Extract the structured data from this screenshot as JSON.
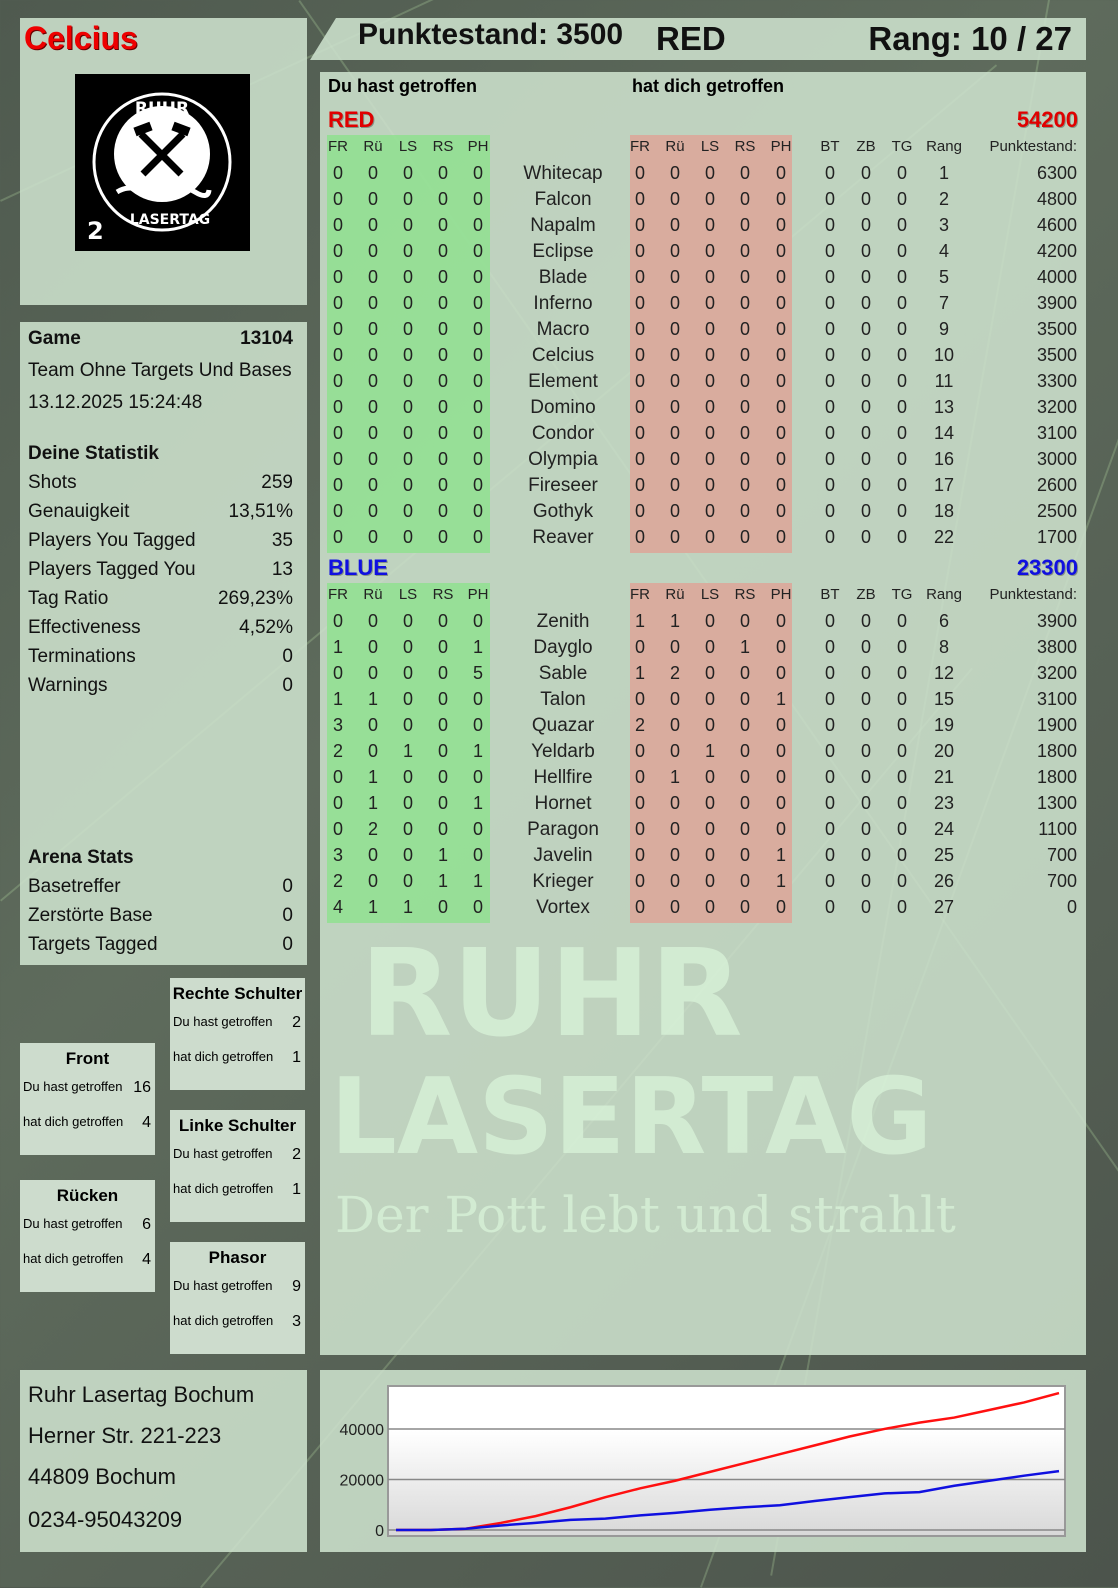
{
  "player": {
    "name": "Celcius",
    "score_label": "Punktestand: 3500",
    "team": "RED",
    "rank_label": "Rang: 10 / 27"
  },
  "logo": {
    "text_top": "RUHR",
    "text_bottom": "LASERTAG",
    "number": "2"
  },
  "watermark": {
    "line1": "RUHR",
    "line2": "LASERTAG",
    "line3": "Der Pott lebt und strahlt"
  },
  "game": {
    "label": "Game",
    "id": "13104",
    "mode": "Team Ohne Targets Und Bases",
    "datetime": "13.12.2025 15:24:48"
  },
  "stats": {
    "title": "Deine Statistik",
    "items": [
      {
        "label": "Shots",
        "value": "259"
      },
      {
        "label": "Genauigkeit",
        "value": "13,51%"
      },
      {
        "label": "Players You Tagged",
        "value": "35"
      },
      {
        "label": "Players Tagged You",
        "value": "13"
      },
      {
        "label": "Tag Ratio",
        "value": "269,23%"
      },
      {
        "label": "Effectiveness",
        "value": "4,52%"
      },
      {
        "label": "Terminations",
        "value": "0"
      },
      {
        "label": "Warnings",
        "value": "0"
      }
    ]
  },
  "arena": {
    "title": "Arena Stats",
    "items": [
      {
        "label": "Basetreffer",
        "value": "0"
      },
      {
        "label": "Zerstörte Base",
        "value": "0"
      },
      {
        "label": "Targets Tagged",
        "value": "0"
      }
    ]
  },
  "body_parts": [
    {
      "title": "Rechte Schulter",
      "you_label": "Du hast getroffen",
      "you": "2",
      "them_label": "hat dich getroffen",
      "them": "1"
    },
    {
      "title": "Front",
      "you_label": "Du hast getroffen",
      "you": "16",
      "them_label": "hat dich getroffen",
      "them": "4"
    },
    {
      "title": "Linke Schulter",
      "you_label": "Du hast getroffen",
      "you": "2",
      "them_label": "hat dich getroffen",
      "them": "1"
    },
    {
      "title": "Rücken",
      "you_label": "Du hast getroffen",
      "you": "6",
      "them_label": "hat dich getroffen",
      "them": "4"
    },
    {
      "title": "Phasor",
      "you_label": "Du hast getroffen",
      "you": "9",
      "them_label": "hat dich getroffen",
      "them": "3"
    }
  ],
  "address": [
    "Ruhr Lasertag Bochum",
    "Herner Str. 221-223",
    "44809 Bochum",
    "0234-95043209"
  ],
  "table": {
    "you_hit_label": "Du hast getroffen",
    "hit_you_label": "hat dich getroffen",
    "hit_cols": [
      "FR",
      "Rü",
      "LS",
      "RS",
      "PH"
    ],
    "extra_cols": [
      "BT",
      "ZB",
      "TG",
      "Rang",
      "Punktestand:"
    ],
    "teams": [
      {
        "name": "RED",
        "total": "54200",
        "color": "#e00000",
        "players": [
          {
            "name": "Whitecap",
            "you": [
              0,
              0,
              0,
              0,
              0
            ],
            "them": [
              0,
              0,
              0,
              0,
              0
            ],
            "extra": [
              0,
              0,
              0,
              1
            ],
            "score": "6300"
          },
          {
            "name": "Falcon",
            "you": [
              0,
              0,
              0,
              0,
              0
            ],
            "them": [
              0,
              0,
              0,
              0,
              0
            ],
            "extra": [
              0,
              0,
              0,
              2
            ],
            "score": "4800"
          },
          {
            "name": "Napalm",
            "you": [
              0,
              0,
              0,
              0,
              0
            ],
            "them": [
              0,
              0,
              0,
              0,
              0
            ],
            "extra": [
              0,
              0,
              0,
              3
            ],
            "score": "4600"
          },
          {
            "name": "Eclipse",
            "you": [
              0,
              0,
              0,
              0,
              0
            ],
            "them": [
              0,
              0,
              0,
              0,
              0
            ],
            "extra": [
              0,
              0,
              0,
              4
            ],
            "score": "4200"
          },
          {
            "name": "Blade",
            "you": [
              0,
              0,
              0,
              0,
              0
            ],
            "them": [
              0,
              0,
              0,
              0,
              0
            ],
            "extra": [
              0,
              0,
              0,
              5
            ],
            "score": "4000"
          },
          {
            "name": "Inferno",
            "you": [
              0,
              0,
              0,
              0,
              0
            ],
            "them": [
              0,
              0,
              0,
              0,
              0
            ],
            "extra": [
              0,
              0,
              0,
              7
            ],
            "score": "3900"
          },
          {
            "name": "Macro",
            "you": [
              0,
              0,
              0,
              0,
              0
            ],
            "them": [
              0,
              0,
              0,
              0,
              0
            ],
            "extra": [
              0,
              0,
              0,
              9
            ],
            "score": "3500"
          },
          {
            "name": "Celcius",
            "you": [
              0,
              0,
              0,
              0,
              0
            ],
            "them": [
              0,
              0,
              0,
              0,
              0
            ],
            "extra": [
              0,
              0,
              0,
              10
            ],
            "score": "3500"
          },
          {
            "name": "Element",
            "you": [
              0,
              0,
              0,
              0,
              0
            ],
            "them": [
              0,
              0,
              0,
              0,
              0
            ],
            "extra": [
              0,
              0,
              0,
              11
            ],
            "score": "3300"
          },
          {
            "name": "Domino",
            "you": [
              0,
              0,
              0,
              0,
              0
            ],
            "them": [
              0,
              0,
              0,
              0,
              0
            ],
            "extra": [
              0,
              0,
              0,
              13
            ],
            "score": "3200"
          },
          {
            "name": "Condor",
            "you": [
              0,
              0,
              0,
              0,
              0
            ],
            "them": [
              0,
              0,
              0,
              0,
              0
            ],
            "extra": [
              0,
              0,
              0,
              14
            ],
            "score": "3100"
          },
          {
            "name": "Olympia",
            "you": [
              0,
              0,
              0,
              0,
              0
            ],
            "them": [
              0,
              0,
              0,
              0,
              0
            ],
            "extra": [
              0,
              0,
              0,
              16
            ],
            "score": "3000"
          },
          {
            "name": "Fireseer",
            "you": [
              0,
              0,
              0,
              0,
              0
            ],
            "them": [
              0,
              0,
              0,
              0,
              0
            ],
            "extra": [
              0,
              0,
              0,
              17
            ],
            "score": "2600"
          },
          {
            "name": "Gothyk",
            "you": [
              0,
              0,
              0,
              0,
              0
            ],
            "them": [
              0,
              0,
              0,
              0,
              0
            ],
            "extra": [
              0,
              0,
              0,
              18
            ],
            "score": "2500"
          },
          {
            "name": "Reaver",
            "you": [
              0,
              0,
              0,
              0,
              0
            ],
            "them": [
              0,
              0,
              0,
              0,
              0
            ],
            "extra": [
              0,
              0,
              0,
              22
            ],
            "score": "1700"
          }
        ]
      },
      {
        "name": "BLUE",
        "total": "23300",
        "color": "#1010e0",
        "players": [
          {
            "name": "Zenith",
            "you": [
              0,
              0,
              0,
              0,
              0
            ],
            "them": [
              1,
              1,
              0,
              0,
              0
            ],
            "extra": [
              0,
              0,
              0,
              6
            ],
            "score": "3900"
          },
          {
            "name": "Dayglo",
            "you": [
              1,
              0,
              0,
              0,
              1
            ],
            "them": [
              0,
              0,
              0,
              1,
              0
            ],
            "extra": [
              0,
              0,
              0,
              8
            ],
            "score": "3800"
          },
          {
            "name": "Sable",
            "you": [
              0,
              0,
              0,
              0,
              5
            ],
            "them": [
              1,
              2,
              0,
              0,
              0
            ],
            "extra": [
              0,
              0,
              0,
              12
            ],
            "score": "3200"
          },
          {
            "name": "Talon",
            "you": [
              1,
              1,
              0,
              0,
              0
            ],
            "them": [
              0,
              0,
              0,
              0,
              1
            ],
            "extra": [
              0,
              0,
              0,
              15
            ],
            "score": "3100"
          },
          {
            "name": "Quazar",
            "you": [
              3,
              0,
              0,
              0,
              0
            ],
            "them": [
              2,
              0,
              0,
              0,
              0
            ],
            "extra": [
              0,
              0,
              0,
              19
            ],
            "score": "1900"
          },
          {
            "name": "Yeldarb",
            "you": [
              2,
              0,
              1,
              0,
              1
            ],
            "them": [
              0,
              0,
              1,
              0,
              0
            ],
            "extra": [
              0,
              0,
              0,
              20
            ],
            "score": "1800"
          },
          {
            "name": "Hellfire",
            "you": [
              0,
              1,
              0,
              0,
              0
            ],
            "them": [
              0,
              1,
              0,
              0,
              0
            ],
            "extra": [
              0,
              0,
              0,
              21
            ],
            "score": "1800"
          },
          {
            "name": "Hornet",
            "you": [
              0,
              1,
              0,
              0,
              1
            ],
            "them": [
              0,
              0,
              0,
              0,
              0
            ],
            "extra": [
              0,
              0,
              0,
              23
            ],
            "score": "1300"
          },
          {
            "name": "Paragon",
            "you": [
              0,
              2,
              0,
              0,
              0
            ],
            "them": [
              0,
              0,
              0,
              0,
              0
            ],
            "extra": [
              0,
              0,
              0,
              24
            ],
            "score": "1100"
          },
          {
            "name": "Javelin",
            "you": [
              3,
              0,
              0,
              1,
              0
            ],
            "them": [
              0,
              0,
              0,
              0,
              1
            ],
            "extra": [
              0,
              0,
              0,
              25
            ],
            "score": "700"
          },
          {
            "name": "Krieger",
            "you": [
              2,
              0,
              0,
              1,
              1
            ],
            "them": [
              0,
              0,
              0,
              0,
              1
            ],
            "extra": [
              0,
              0,
              0,
              26
            ],
            "score": "700"
          },
          {
            "name": "Vortex",
            "you": [
              4,
              1,
              1,
              0,
              0
            ],
            "them": [
              0,
              0,
              0,
              0,
              0
            ],
            "extra": [
              0,
              0,
              0,
              27
            ],
            "score": "0"
          }
        ]
      }
    ]
  },
  "chart_data": {
    "type": "line",
    "xlabel": "",
    "ylabel": "",
    "ylim": [
      0,
      57000
    ],
    "yticks": [
      0,
      20000,
      40000
    ],
    "grid": true,
    "series": [
      {
        "color": "#ff1010",
        "values": [
          0,
          0,
          500,
          2800,
          5500,
          9000,
          13000,
          16500,
          19500,
          23000,
          26500,
          30000,
          33500,
          37000,
          40000,
          42500,
          44500,
          47500,
          50500,
          54200
        ]
      },
      {
        "color": "#1010e0",
        "values": [
          0,
          0,
          500,
          1800,
          2800,
          4000,
          4500,
          5800,
          6800,
          8000,
          9000,
          9800,
          11500,
          13000,
          14500,
          15000,
          17500,
          19500,
          21500,
          23300
        ]
      }
    ]
  }
}
